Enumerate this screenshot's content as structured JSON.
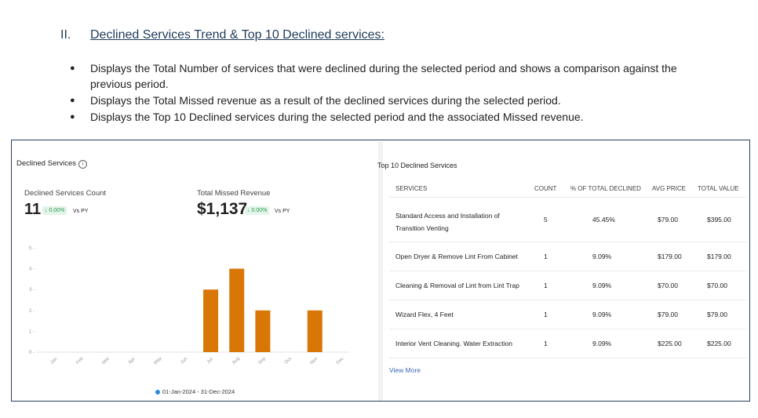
{
  "section": {
    "numeral": "II.",
    "title": "Declined Services Trend & Top 10 Declined services:",
    "bullets": [
      "Displays the Total Number of services that were declined during the selected period and shows a comparison against the previous period.",
      "Displays the Total Missed revenue as a result of the declined services during the selected period.",
      "Displays the Top 10 Declined services during the selected period and the associated Missed revenue."
    ]
  },
  "left_panel": {
    "title": "Declined Services",
    "info_icon": "info-icon",
    "count_kpi": {
      "label": "Declined Services Count",
      "value": "11",
      "change": "↓ 0.00%",
      "vs": "Vs PY"
    },
    "revenue_kpi": {
      "label": "Total Missed Revenue",
      "value": "$1,137",
      "change": "↓ 0.00%",
      "vs": "Vs PY"
    },
    "date_range": "01-Jan-2024 - 31-Dec-2024"
  },
  "chart_data": {
    "type": "bar",
    "title": "Declined Services",
    "categories": [
      "Jan",
      "Feb",
      "Mar",
      "Apr",
      "May",
      "Jun",
      "Jul",
      "Aug",
      "Sep",
      "Oct",
      "Nov",
      "Dec"
    ],
    "values": [
      0,
      0,
      0,
      0,
      0,
      0,
      3,
      4,
      2,
      0,
      2,
      0
    ],
    "yticks": [
      "0",
      "1",
      "2",
      "3",
      "4",
      "5"
    ],
    "ylim": [
      0,
      5
    ],
    "xlabel": "",
    "ylabel": "",
    "grid": false,
    "bar_color": "#d97706",
    "legend": "01-Jan-2024 - 31-Dec-2024"
  },
  "right_panel": {
    "title": "Top 10 Declined Services",
    "headers": {
      "services": "SERVICES",
      "count": "COUNT",
      "pct": "% OF TOTAL DECLINED",
      "avg_price": "AVG PRICE",
      "total_value": "TOTAL VALUE"
    },
    "rows": [
      {
        "service": "Standard Access and Installation of Transition Venting",
        "count": "5",
        "pct": "45.45%",
        "avg_price": "$79.00",
        "total_value": "$395.00"
      },
      {
        "service": "Open Dryer & Remove Lint From Cabinet",
        "count": "1",
        "pct": "9.09%",
        "avg_price": "$179.00",
        "total_value": "$179.00"
      },
      {
        "service": "Cleaning & Removal of Lint from Lint Trap",
        "count": "1",
        "pct": "9.09%",
        "avg_price": "$70.00",
        "total_value": "$70.00"
      },
      {
        "service": "Wizard Flex, 4 Feet",
        "count": "1",
        "pct": "9.09%",
        "avg_price": "$79.00",
        "total_value": "$79.00"
      },
      {
        "service": "Interior Vent Cleaning. Water Extraction",
        "count": "1",
        "pct": "9.09%",
        "avg_price": "$225.00",
        "total_value": "$225.00"
      }
    ],
    "view_more": "View More"
  }
}
